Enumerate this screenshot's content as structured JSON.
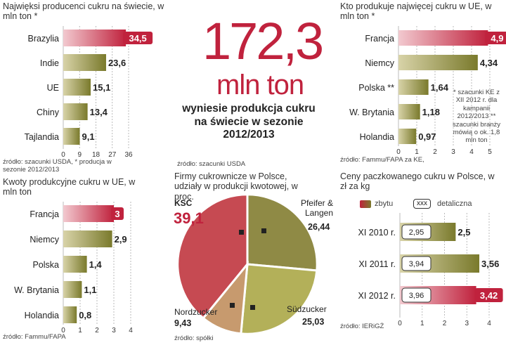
{
  "colors": {
    "red": "#c0223d",
    "olive": "#7a7a2c",
    "oliveLight": "#a8a04a",
    "grid": "#999999"
  },
  "headline": {
    "number": "172,3",
    "unit": "mln ton",
    "subtitle": "wyniesie produkcja cukru na świecie w sezonie 2012/2013",
    "source": "źródło: szacunki USDA"
  },
  "chart_data": [
    {
      "id": "world",
      "type": "bar",
      "title": "Najwięksi producenci cukru na świecie, w mln ton *",
      "categories": [
        "Brazylia",
        "Indie",
        "UE",
        "Chiny",
        "Tajlandia"
      ],
      "values": [
        34.5,
        23.6,
        15.1,
        13.4,
        9.1
      ],
      "value_labels": [
        "34,5",
        "23,6",
        "15,1",
        "13,4",
        "9,1"
      ],
      "highlight": [
        0
      ],
      "xlim": [
        0,
        36
      ],
      "ticks": [
        0,
        9,
        18,
        27,
        36
      ],
      "tick_labels": [
        "0",
        "9",
        "18",
        "27",
        "36"
      ],
      "source": "źródło: szacunki USDA, * producja w sezonie 2012/2013"
    },
    {
      "id": "ue",
      "type": "bar",
      "title": "Kto produkuje najwięcej cukru w UE, w mln ton *",
      "categories": [
        "Francja",
        "Niemcy",
        "Polska **",
        "W. Brytania",
        "Holandia"
      ],
      "values": [
        4.9,
        4.34,
        1.64,
        1.18,
        0.97
      ],
      "value_labels": [
        "4,9",
        "4,34",
        "1,64",
        "1,18",
        "0,97"
      ],
      "highlight": [
        0
      ],
      "xlim": [
        0,
        5
      ],
      "ticks": [
        0,
        1,
        2,
        3,
        4,
        5
      ],
      "tick_labels": [
        "0",
        "1",
        "2",
        "3",
        "4",
        "5"
      ],
      "note": "* szacunki KE z XII 2012 r. dla kampanii 2012/2013 ** szacunki branży mówią o ok. 1,8 mln ton",
      "source": "źródło: Fammu/FAPA za KE,"
    },
    {
      "id": "quota",
      "type": "bar",
      "title": "Kwoty produkcyjne cukru w UE, w mln ton",
      "categories": [
        "Francja",
        "Niemcy",
        "Polska",
        "W. Brytania",
        "Holandia"
      ],
      "values": [
        3,
        2.9,
        1.4,
        1.1,
        0.8
      ],
      "value_labels": [
        "3",
        "2,9",
        "1,4",
        "1,1",
        "0,8"
      ],
      "highlight": [
        0
      ],
      "xlim": [
        0,
        4
      ],
      "ticks": [
        0,
        1,
        2,
        3,
        4
      ],
      "tick_labels": [
        "0",
        "1",
        "2",
        "3",
        "4"
      ],
      "source": "źródło: Fammu/FAPA"
    },
    {
      "id": "pie",
      "type": "pie",
      "title": "Firmy cukrownicze w Polsce, udziały w produkcji kwotowej, w proc.",
      "slices": [
        {
          "name": "KSC",
          "value": 39.1,
          "label": "39,1"
        },
        {
          "name": "Pfeifer & Langen",
          "value": 26.44,
          "label": "26,44"
        },
        {
          "name": "Südzucker",
          "value": 25.03,
          "label": "25,03"
        },
        {
          "name": "Nordzucker",
          "value": 9.43,
          "label": "9,43"
        }
      ],
      "source": "źródło: spółki"
    },
    {
      "id": "prices",
      "type": "bar",
      "title": "Ceny paczkowanego cukru w Polsce, w zł za kg",
      "legend": {
        "wholesale": "zbytu",
        "retail_box": "xxx",
        "retail": "detaliczna"
      },
      "categories": [
        "XI 2010 r.",
        "XI 2011 r.",
        "XI 2012 r."
      ],
      "series": [
        {
          "name": "zbytu",
          "values": [
            2.5,
            3.56,
            3.42
          ],
          "value_labels": [
            "2,5",
            "3,56",
            "3,42"
          ]
        },
        {
          "name": "detaliczna",
          "values": [
            2.95,
            3.94,
            3.96
          ],
          "value_labels": [
            "2,95",
            "3,94",
            "3,96"
          ]
        }
      ],
      "highlight": [
        2
      ],
      "xlim": [
        0,
        4
      ],
      "ticks": [
        0,
        1,
        2,
        3,
        4
      ],
      "tick_labels": [
        "0",
        "1",
        "2",
        "3",
        "4"
      ],
      "source": "źródło: IERiGŻ"
    }
  ]
}
